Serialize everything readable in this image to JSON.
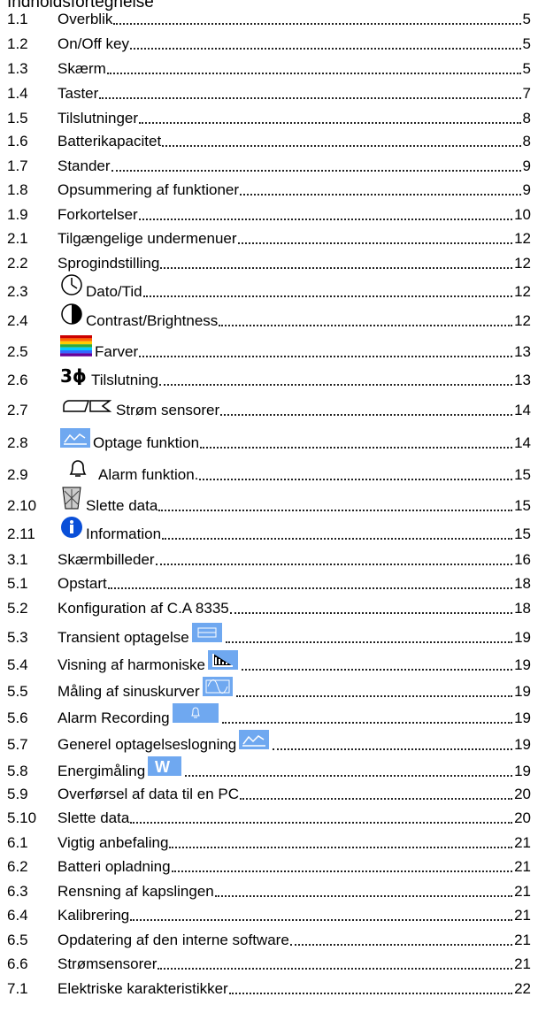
{
  "title": "Indholdsfortegnelse",
  "entries": [
    {
      "number": "1.1",
      "text": "Overblik",
      "page": "5"
    },
    {
      "number": "1.2",
      "text": "On/Off key",
      "page": "5"
    },
    {
      "number": "1.3",
      "text": "Skærm",
      "page": "5"
    },
    {
      "number": "1.4",
      "text": "Taster",
      "page": "7"
    },
    {
      "number": "1.5",
      "text": "Tilslutninger",
      "page": "8"
    },
    {
      "number": "1.6",
      "text": "Batterikapacitet",
      "page": "8"
    },
    {
      "number": "1.7",
      "text": "Stander",
      "page": "9"
    },
    {
      "number": "1.8",
      "text": "Opsummering af funktioner",
      "page": "9"
    },
    {
      "number": "1.9",
      "text": "Forkortelser",
      "page": "10"
    },
    {
      "number": "2.1",
      "text": "Tilgængelige undermenuer",
      "page": "12"
    },
    {
      "number": "2.2",
      "text": "Sprogindstilling",
      "page": "12"
    },
    {
      "number": "2.3",
      "text": "Dato/Tid",
      "page": "12"
    },
    {
      "number": "2.4",
      "text": "Contrast/Brightness",
      "page": "12"
    },
    {
      "number": "2.5",
      "text": "Farver",
      "page": "13"
    },
    {
      "number": "2.6",
      "text": "Tilslutning",
      "page": "13"
    },
    {
      "number": "2.7",
      "text": "Strøm sensorer",
      "page": "14"
    },
    {
      "number": "2.8",
      "text": "Optage funktion",
      "page": "14"
    },
    {
      "number": "2.9",
      "text": "Alarm funktion.",
      "page": "15"
    },
    {
      "number": "2.10",
      "text": "Slette data",
      "page": "15"
    },
    {
      "number": "2.11",
      "text": "Information",
      "page": "15"
    },
    {
      "number": "3.1",
      "text": "Skærmbilleder",
      "page": "16"
    },
    {
      "number": "5.1",
      "text": "Opstart",
      "page": "18"
    },
    {
      "number": "5.2",
      "text": "Konfiguration af C.A 8335",
      "page": "18"
    },
    {
      "number": "5.3",
      "text": "Transient optagelse",
      "page": "19"
    },
    {
      "number": "5.4",
      "text": "Visning af harmoniske",
      "page": "19"
    },
    {
      "number": "5.5",
      "text": "Måling af sinuskurver",
      "page": "19"
    },
    {
      "number": "5.6",
      "text": "Alarm Recording",
      "page": "19"
    },
    {
      "number": "5.7",
      "text": "Generel optagelseslogning",
      "page": "19"
    },
    {
      "number": "5.8",
      "text": "Energimåling",
      "page": "19"
    },
    {
      "number": "5.9",
      "text": "Overførsel af data til en PC",
      "page": "20"
    },
    {
      "number": "5.10",
      "text": "Slette data",
      "page": "20"
    },
    {
      "number": "6.1",
      "text": "Vigtig anbefaling",
      "page": "21"
    },
    {
      "number": "6.2",
      "text": "Batteri opladning",
      "page": "21"
    },
    {
      "number": "6.3",
      "text": "Rensning af kapslingen",
      "page": "21"
    },
    {
      "number": "6.4",
      "text": "Kalibrering",
      "page": "21"
    },
    {
      "number": "6.5",
      "text": "Opdatering af den interne software",
      "page": "21"
    },
    {
      "number": "6.6",
      "text": "Strømsensorer",
      "page": "21"
    },
    {
      "number": "7.1",
      "text": "Elektriske karakteristikker",
      "page": "22"
    }
  ]
}
